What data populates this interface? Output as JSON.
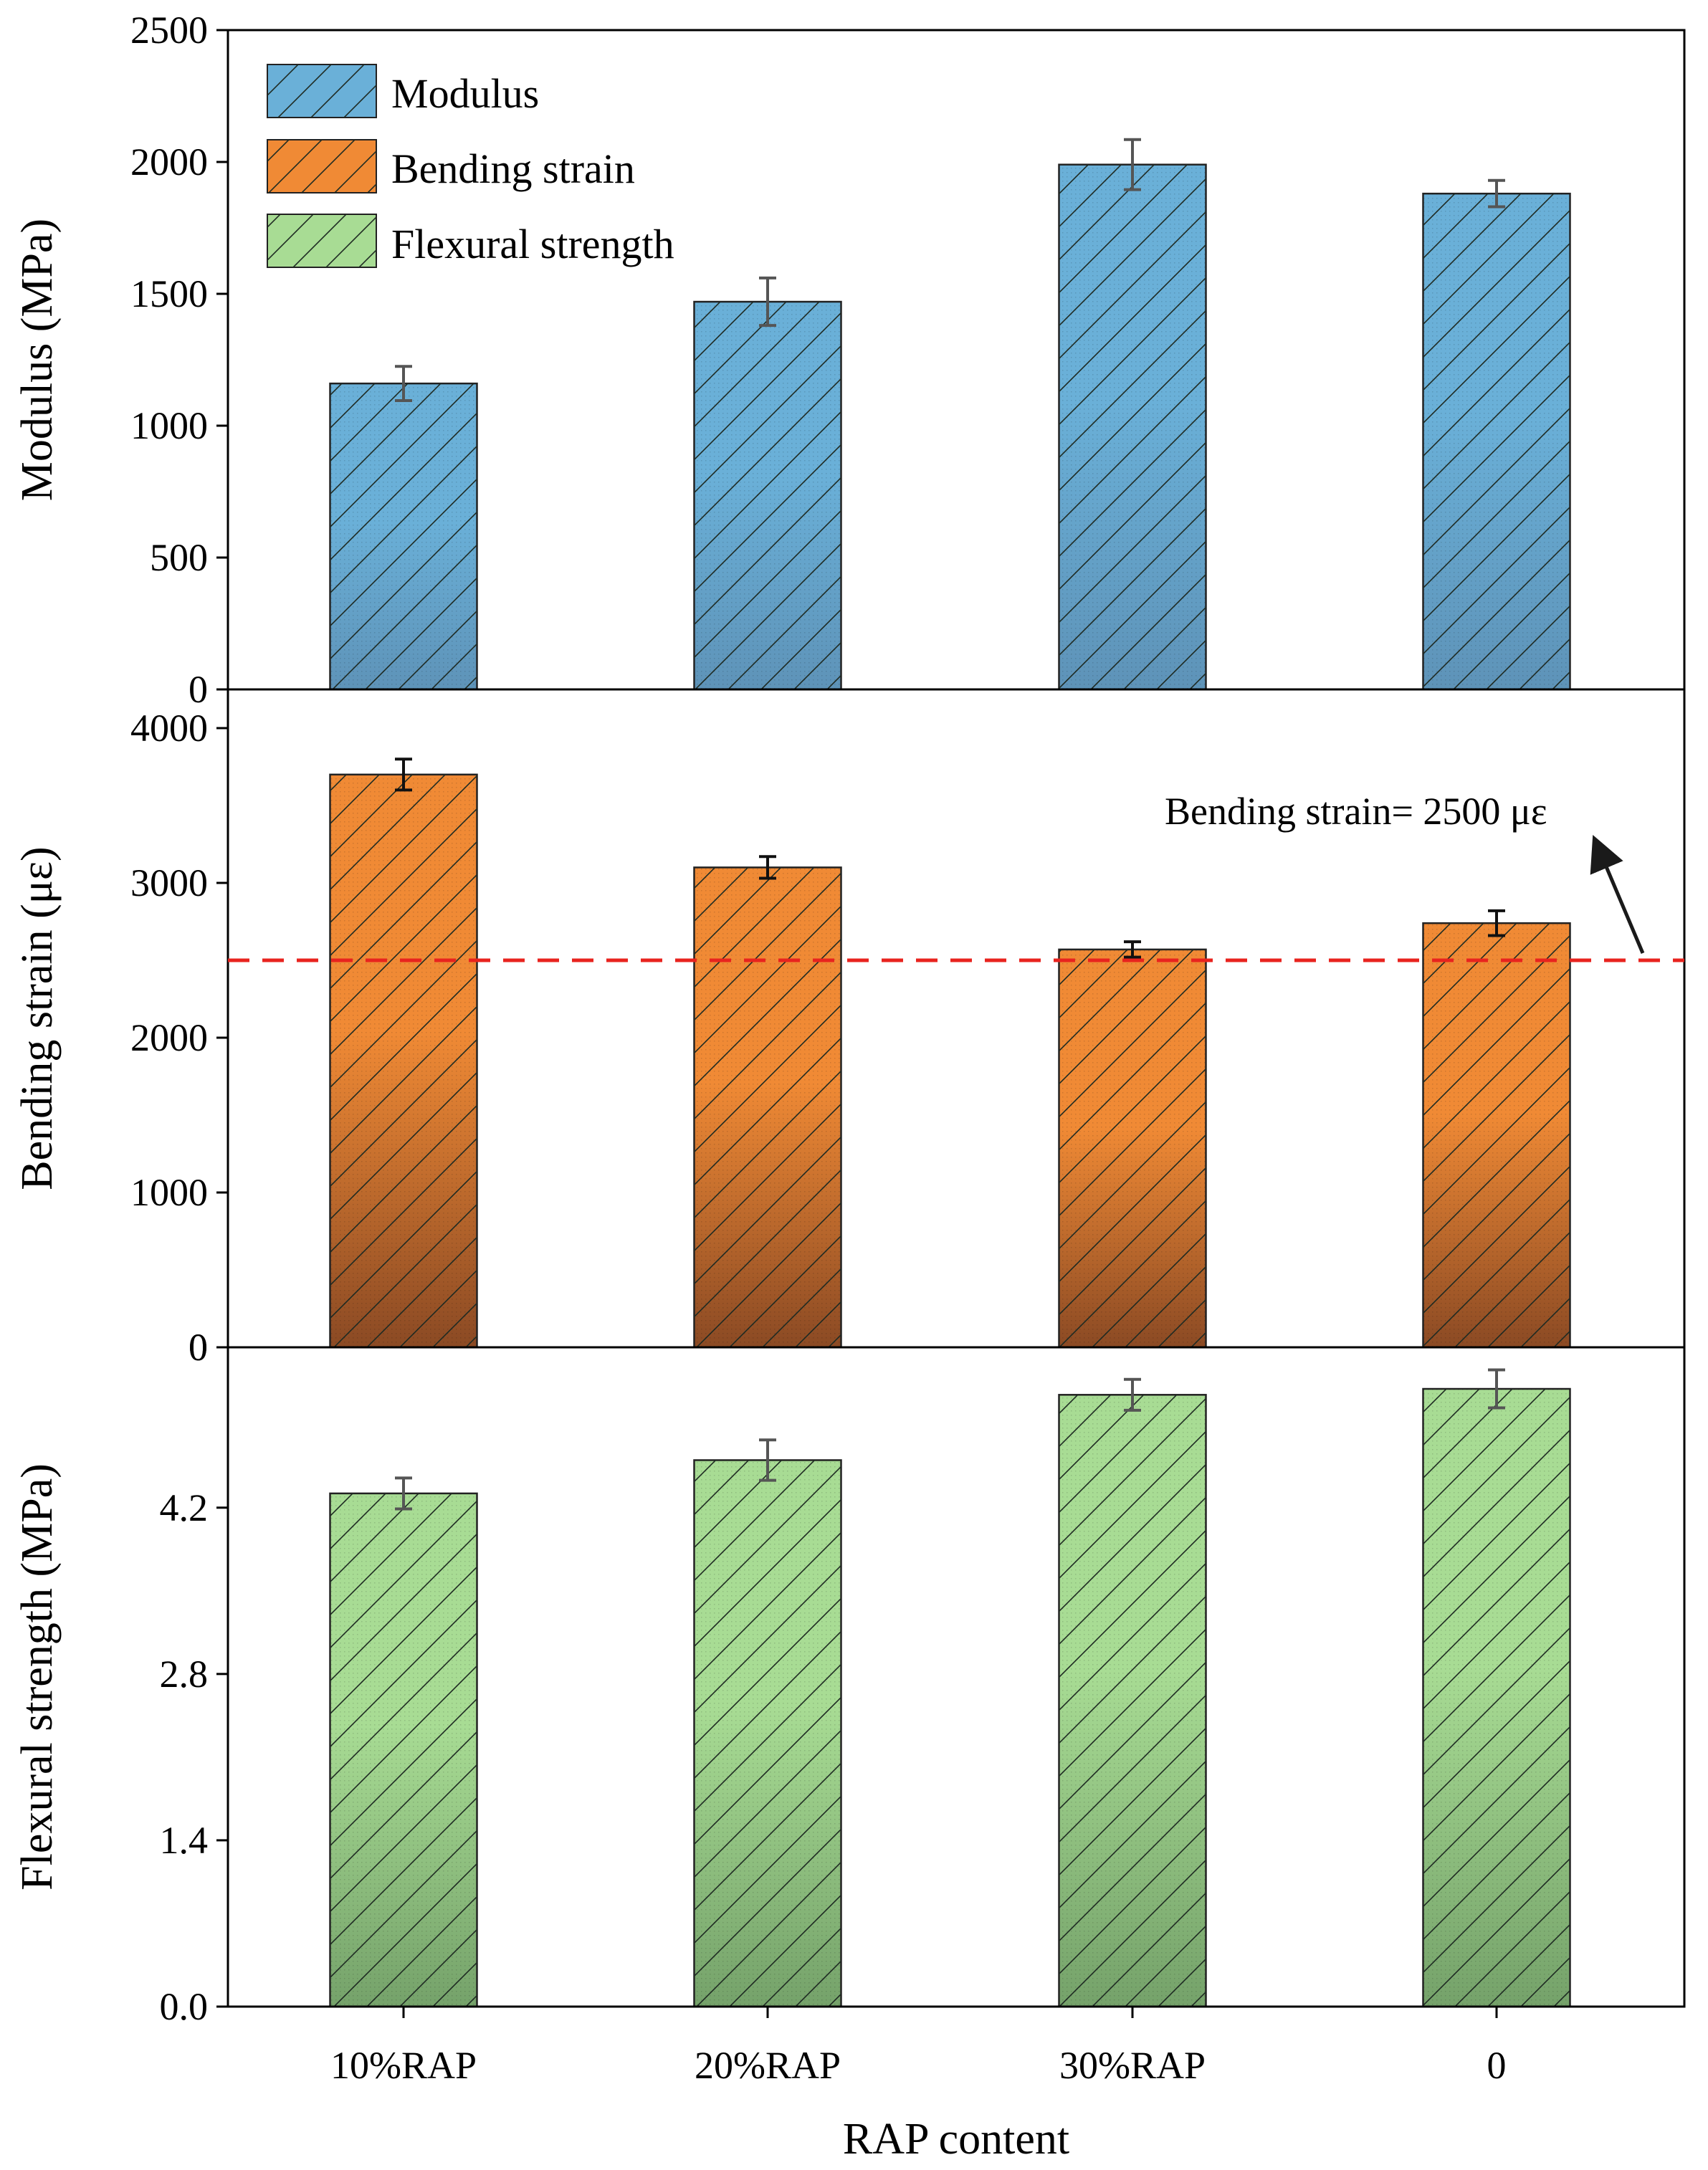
{
  "chart_data": {
    "type": "bar",
    "categories": [
      "10%RAP",
      "20%RAP",
      "30%RAP",
      "0"
    ],
    "xlabel": "RAP content",
    "panels": [
      {
        "name": "modulus",
        "ylabel": "Modulus (MPa)",
        "ylim": [
          0,
          2500
        ],
        "yticks": [
          "0",
          "500",
          "1000",
          "1500",
          "2000",
          "2500"
        ],
        "ytick_values": [
          0,
          500,
          1000,
          1500,
          2000,
          2500
        ],
        "values": [
          1160,
          1470,
          1990,
          1880
        ],
        "errors": [
          65,
          90,
          95,
          50
        ],
        "color": "#6ab0d8",
        "color_bottom": "#5e93b8",
        "legend": "Modulus"
      },
      {
        "name": "bending-strain",
        "ylabel": "Bending strain (με)",
        "ylim": [
          0,
          4250
        ],
        "yticks": [
          "0",
          "1000",
          "2000",
          "3000",
          "4000"
        ],
        "ytick_values": [
          0,
          1000,
          2000,
          3000,
          4000
        ],
        "values": [
          3700,
          3100,
          2570,
          2740
        ],
        "errors": [
          100,
          70,
          50,
          80
        ],
        "color": "#f08a35",
        "color_bottom": "#8b4a24",
        "legend": "Bending strain",
        "reference_line": {
          "value": 2500,
          "color": "#e8231e",
          "label": "Bending strain= 2500 με"
        }
      },
      {
        "name": "flexural-strength",
        "ylabel": "Flexural strength (MPa)",
        "ylim": [
          0,
          5.55
        ],
        "yticks": [
          "0.0",
          "1.4",
          "2.8",
          "4.2"
        ],
        "ytick_values": [
          0,
          1.4,
          2.8,
          4.2
        ],
        "top_tick_label": "0",
        "values": [
          4.32,
          4.6,
          5.15,
          5.2
        ],
        "errors": [
          0.13,
          0.17,
          0.13,
          0.16
        ],
        "color": "#a8dc94",
        "color_bottom": "#75a26a",
        "legend": "Flexural strength"
      }
    ]
  }
}
